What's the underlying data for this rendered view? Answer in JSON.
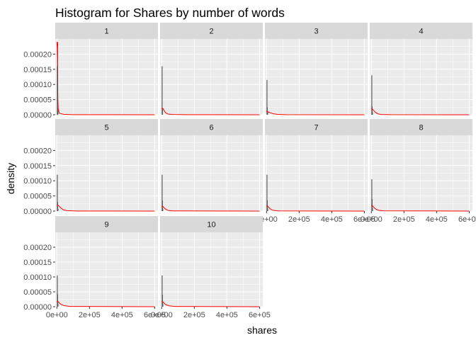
{
  "chart_data": {
    "type": "histogram-facet",
    "title": "Histogram for Shares by number of words",
    "xlabel": "shares",
    "ylabel": "density",
    "xlim": [
      -10000,
      620000
    ],
    "ylim": [
      0,
      0.00025
    ],
    "x_ticks": [
      0,
      200000,
      400000,
      600000
    ],
    "x_tick_labels": [
      "0e+00",
      "2e+05",
      "4e+05",
      "6e+05"
    ],
    "y_ticks": [
      0,
      5e-05,
      0.0001,
      0.00015,
      0.0002
    ],
    "y_tick_labels": [
      "0.00000",
      "0.00005",
      "0.00010",
      "0.00015",
      "0.00020"
    ],
    "grid": true,
    "facets": [
      {
        "label": "1",
        "bars": [
          [
            1000,
            0.00016
          ],
          [
            3000,
            0.00024
          ],
          [
            5000,
            1.5e-05
          ]
        ],
        "density": [
          [
            0,
            0.00024
          ],
          [
            2000,
            0.00022
          ],
          [
            4000,
            0.00016
          ],
          [
            6000,
            5e-05
          ],
          [
            8000,
            2e-05
          ],
          [
            15000,
            5e-06
          ],
          [
            40000,
            1.5e-06
          ],
          [
            100000,
            4e-07
          ],
          [
            600000,
            0
          ]
        ]
      },
      {
        "label": "2",
        "bars": [
          [
            1000,
            0.00016
          ],
          [
            3000,
            2e-05
          ]
        ],
        "density": [
          [
            0,
            2e-05
          ],
          [
            3000,
            2.2e-05
          ],
          [
            8000,
            2e-05
          ],
          [
            15000,
            1.3e-05
          ],
          [
            25000,
            6e-06
          ],
          [
            40000,
            2e-06
          ],
          [
            70000,
            8e-07
          ],
          [
            150000,
            2e-07
          ],
          [
            600000,
            0
          ]
        ]
      },
      {
        "label": "3",
        "bars": [
          [
            1000,
            0.000115
          ],
          [
            3000,
            2.5e-05
          ],
          [
            5000,
            8e-06
          ]
        ],
        "density": [
          [
            0,
            1e-05
          ],
          [
            3000,
            1.2e-05
          ],
          [
            10000,
            9e-06
          ],
          [
            25000,
            6e-06
          ],
          [
            45000,
            3e-06
          ],
          [
            70000,
            1.2e-06
          ],
          [
            120000,
            4e-07
          ],
          [
            600000,
            0
          ]
        ]
      },
      {
        "label": "4",
        "bars": [
          [
            1000,
            0.00013
          ],
          [
            3000,
            2.8e-05
          ],
          [
            5000,
            8e-06
          ]
        ],
        "density": [
          [
            0,
            1.8e-05
          ],
          [
            4000,
            2e-05
          ],
          [
            12000,
            1.5e-05
          ],
          [
            25000,
            8e-06
          ],
          [
            40000,
            3e-06
          ],
          [
            60000,
            1e-06
          ],
          [
            120000,
            2e-07
          ],
          [
            600000,
            0
          ]
        ]
      },
      {
        "label": "5",
        "bars": [
          [
            1000,
            0.00012
          ],
          [
            3000,
            3e-05
          ],
          [
            5000,
            8e-06
          ]
        ],
        "density": [
          [
            0,
            1.8e-05
          ],
          [
            4000,
            2e-05
          ],
          [
            12000,
            1.7e-05
          ],
          [
            25000,
            1e-05
          ],
          [
            40000,
            4e-06
          ],
          [
            60000,
            1.5e-06
          ],
          [
            120000,
            3e-07
          ],
          [
            600000,
            0
          ]
        ]
      },
      {
        "label": "6",
        "bars": [
          [
            1000,
            0.00012
          ],
          [
            3000,
            3.5e-05
          ],
          [
            5000,
            8e-06
          ]
        ],
        "density": [
          [
            0,
            1.5e-05
          ],
          [
            4000,
            1.7e-05
          ],
          [
            12000,
            1.2e-05
          ],
          [
            25000,
            6e-06
          ],
          [
            40000,
            2e-06
          ],
          [
            70000,
            6e-07
          ],
          [
            600000,
            0
          ]
        ]
      },
      {
        "label": "7",
        "bars": [
          [
            1000,
            0.00012
          ],
          [
            3000,
            3.5e-05
          ],
          [
            5000,
            8e-06
          ]
        ],
        "density": [
          [
            0,
            1.6e-05
          ],
          [
            4000,
            1.8e-05
          ],
          [
            12000,
            1.3e-05
          ],
          [
            25000,
            6e-06
          ],
          [
            40000,
            2.5e-06
          ],
          [
            70000,
            7e-07
          ],
          [
            600000,
            0
          ]
        ]
      },
      {
        "label": "8",
        "bars": [
          [
            1000,
            0.000105
          ],
          [
            3000,
            4e-05
          ],
          [
            5000,
            1e-05
          ]
        ],
        "density": [
          [
            0,
            1.7e-05
          ],
          [
            4000,
            1.9e-05
          ],
          [
            12000,
            1.4e-05
          ],
          [
            25000,
            7e-06
          ],
          [
            40000,
            3e-06
          ],
          [
            70000,
            8e-07
          ],
          [
            600000,
            0
          ]
        ]
      },
      {
        "label": "9",
        "bars": [
          [
            1000,
            0.000105
          ],
          [
            3000,
            4.2e-05
          ],
          [
            5000,
            1e-05
          ]
        ],
        "density": [
          [
            0,
            1.7e-05
          ],
          [
            4000,
            1.9e-05
          ],
          [
            12000,
            1.4e-05
          ],
          [
            25000,
            8e-06
          ],
          [
            45000,
            3.5e-06
          ],
          [
            80000,
            1e-06
          ],
          [
            600000,
            0
          ]
        ]
      },
      {
        "label": "10",
        "bars": [
          [
            1000,
            0.000105
          ],
          [
            3000,
            4e-05
          ],
          [
            5000,
            1e-05
          ]
        ],
        "density": [
          [
            0,
            1.6e-05
          ],
          [
            4000,
            1.8e-05
          ],
          [
            12000,
            1.3e-05
          ],
          [
            25000,
            7e-06
          ],
          [
            45000,
            3e-06
          ],
          [
            80000,
            8e-07
          ],
          [
            600000,
            0
          ]
        ]
      }
    ]
  },
  "colors": {
    "panel_bg": "#ebebeb",
    "strip_bg": "#d9d9d9",
    "grid_major": "#ffffff",
    "bar": "#595959",
    "density_line": "#ff0000"
  }
}
